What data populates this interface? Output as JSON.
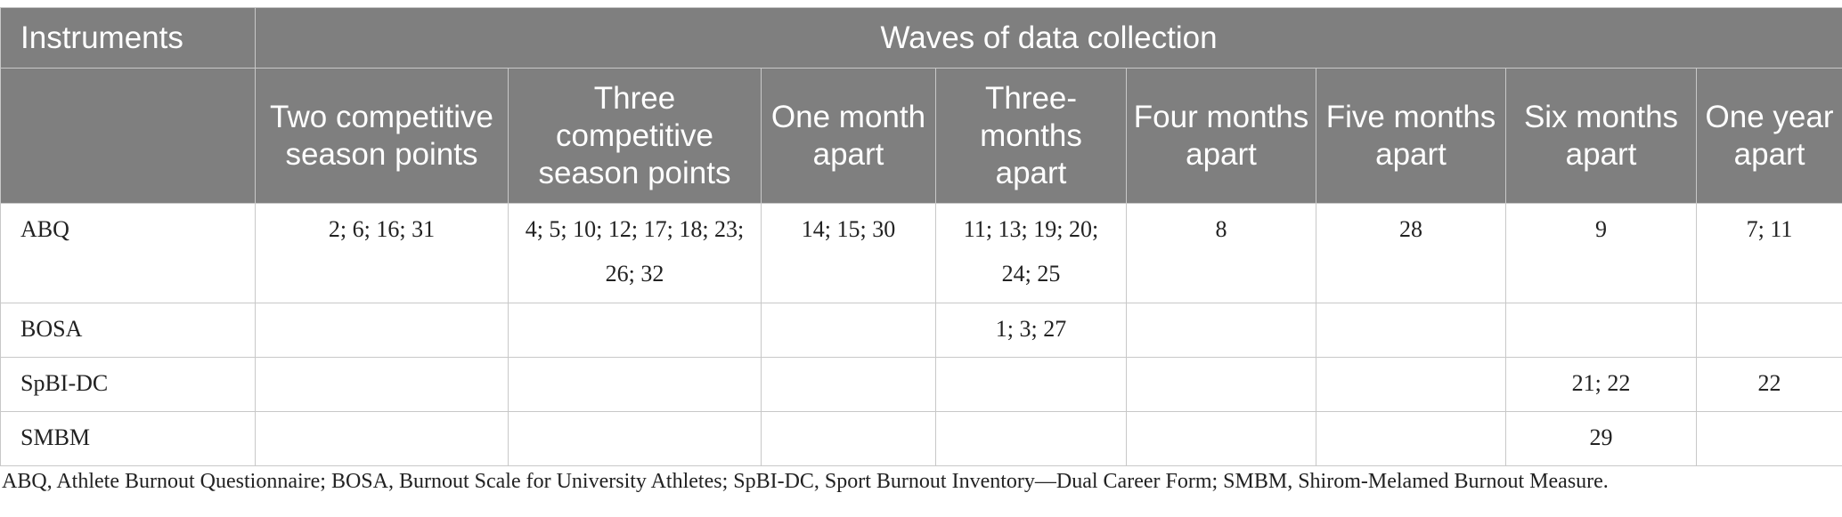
{
  "table": {
    "header": {
      "instruments": "Instruments",
      "waves": "Waves of data collection",
      "columns": [
        "Two competitive season points",
        "Three competitive season points",
        "One month apart",
        "Three-months apart",
        "Four months apart",
        "Five months apart",
        "Six months apart",
        "One year apart"
      ]
    },
    "rows": [
      {
        "label": "ABQ",
        "cells": [
          "2; 6; 16; 31",
          "4; 5; 10; 12; 17; 18; 23; 26; 32",
          "14; 15; 30",
          "11; 13; 19; 20; 24; 25",
          "8",
          "28",
          "9",
          "7; 11"
        ]
      },
      {
        "label": "BOSA",
        "cells": [
          "",
          "",
          "",
          "1; 3; 27",
          "",
          "",
          "",
          ""
        ]
      },
      {
        "label": "SpBI-DC",
        "cells": [
          "",
          "",
          "",
          "",
          "",
          "",
          "21; 22",
          "22"
        ]
      },
      {
        "label": "SMBM",
        "cells": [
          "",
          "",
          "",
          "",
          "",
          "",
          "29",
          ""
        ]
      }
    ]
  },
  "footnote": "ABQ, Athlete Burnout Questionnaire; BOSA, Burnout Scale for University Athletes; SpBI-DC, Sport Burnout Inventory—Dual Career Form; SMBM, Shirom-Melamed Burnout Measure."
}
